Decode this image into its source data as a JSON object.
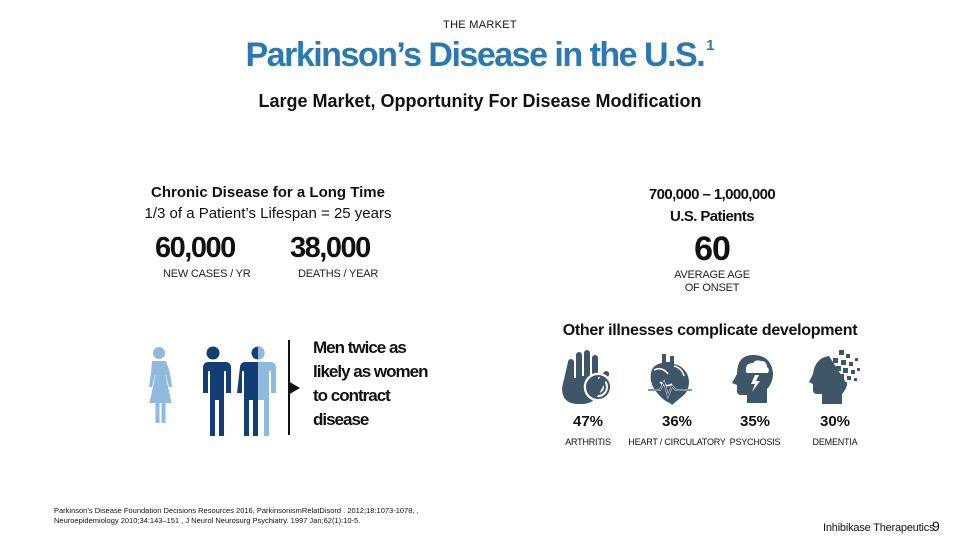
{
  "header": {
    "section": "THE MARKET",
    "title": "Parkinson’s Disease in the U.S.",
    "title_superscript": "1",
    "subtitle": "Large Market, Opportunity For Disease Modification"
  },
  "left_panel": {
    "heading": "Chronic Disease for a Long Time",
    "subheading": "1/3 of a Patient’s Lifespan = 25 years",
    "stats": [
      {
        "value": "60,000",
        "label": "NEW CASES / YR"
      },
      {
        "value": "38,000",
        "label": "DEATHS / YEAR"
      }
    ]
  },
  "right_panel": {
    "range": "700,000 – 1,000,000",
    "range_label": "U.S. Patients",
    "age_value": "60",
    "age_label_line1": "AVERAGE AGE",
    "age_label_line2": "OF ONSET"
  },
  "gender": {
    "text_lines": [
      "Men twice as",
      "likely as women",
      "to contract",
      "disease"
    ],
    "female_color": "#8fb9dd",
    "male_color": "#123d75"
  },
  "illnesses": {
    "title": "Other illnesses complicate development",
    "icon_color": "#3f5568",
    "items": [
      {
        "percent": "47%",
        "label": "ARTHRITIS",
        "icon": "hand-icon"
      },
      {
        "percent": "36%",
        "label": "HEART / CIRCULATORY",
        "icon": "heart-icon"
      },
      {
        "percent": "35%",
        "label": "PSYCHOSIS",
        "icon": "storm-head-icon"
      },
      {
        "percent": "30%",
        "label": "DEMENTIA",
        "icon": "pixel-head-icon"
      }
    ]
  },
  "footer": {
    "footnote_line1": "Parkinson’s Disease Foundation Decisions Resources 2016,  ParkinsonismRelatDisord . 2012;18:1073-1078, ,",
    "footnote_line2": "Neuroepidemiology 2010;34:143–151 , J Neurol Neurosurg Psychiatry. 1997 Jan;62(1):10-5.",
    "company": "Inhibikase Therapeutics",
    "page_number": "9"
  }
}
